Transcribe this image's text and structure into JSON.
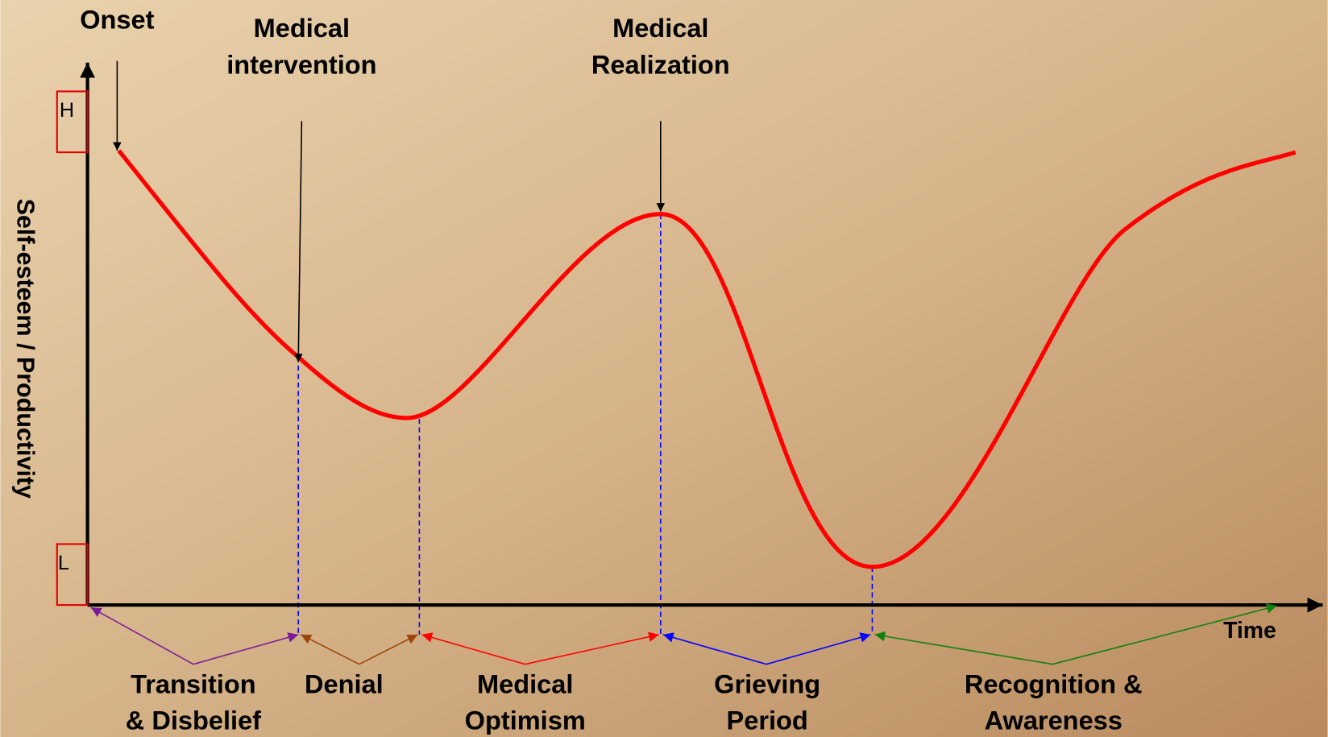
{
  "axis": {
    "high": "H",
    "low": "L",
    "y_label": "Self-esteem / Productivity",
    "x_label": "Time"
  },
  "events": [
    {
      "lines": [
        "Onset"
      ]
    },
    {
      "lines": [
        "Medical",
        "intervention"
      ]
    },
    {
      "lines": [
        "Medical",
        "Realization"
      ]
    }
  ],
  "phases": [
    {
      "lines": [
        "Transition",
        "& Disbelief"
      ]
    },
    {
      "lines": [
        "Denial"
      ]
    },
    {
      "lines": [
        "Medical",
        "Optimism"
      ]
    },
    {
      "lines": [
        "Grieving",
        "Period"
      ]
    },
    {
      "lines": [
        "Recognition &",
        "Awareness"
      ]
    }
  ]
}
